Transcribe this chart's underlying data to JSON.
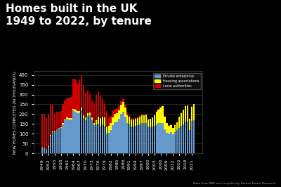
{
  "title_line1": "Homes built in the UK",
  "title_line2": "1949 to 2022, by tenure",
  "ylabel": "NEW HOMES COMPLETED (IN THOUSANDS)",
  "source": "Data from ONS and compiled by Denton House Research",
  "background_color": "#000000",
  "chart_bg": "#0a0a0a",
  "grid_color": "#444444",
  "text_color": "#ffffff",
  "bar_color_private": "#6699cc",
  "bar_color_housing": "#ffff00",
  "bar_color_local": "#cc0000",
  "legend_labels": [
    "Private enterprise",
    "Housing associations",
    "Local authorities"
  ],
  "years": [
    1949,
    1950,
    1951,
    1952,
    1953,
    1954,
    1955,
    1956,
    1957,
    1958,
    1959,
    1960,
    1961,
    1962,
    1963,
    1964,
    1965,
    1966,
    1967,
    1968,
    1969,
    1970,
    1971,
    1972,
    1973,
    1974,
    1975,
    1976,
    1977,
    1978,
    1979,
    1980,
    1981,
    1982,
    1983,
    1984,
    1985,
    1986,
    1987,
    1988,
    1989,
    1990,
    1991,
    1992,
    1993,
    1994,
    1995,
    1996,
    1997,
    1998,
    1999,
    2000,
    2001,
    2002,
    2003,
    2004,
    2005,
    2006,
    2007,
    2008,
    2009,
    2010,
    2011,
    2012,
    2013,
    2014,
    2015,
    2016,
    2017,
    2018,
    2019,
    2020,
    2021,
    2022
  ],
  "private": [
    26,
    27,
    21,
    34,
    90,
    108,
    112,
    121,
    126,
    128,
    148,
    168,
    176,
    174,
    174,
    218,
    213,
    204,
    207,
    222,
    181,
    170,
    192,
    196,
    170,
    143,
    149,
    152,
    141,
    149,
    141,
    100,
    103,
    118,
    145,
    160,
    162,
    178,
    203,
    213,
    187,
    153,
    150,
    138,
    138,
    142,
    143,
    148,
    153,
    153,
    156,
    136,
    135,
    137,
    139,
    148,
    153,
    154,
    156,
    122,
    105,
    101,
    107,
    96,
    109,
    118,
    131,
    140,
    147,
    161,
    161,
    118,
    164,
    170
  ],
  "housing_assoc": [
    2,
    2,
    2,
    2,
    2,
    3,
    3,
    3,
    4,
    4,
    5,
    6,
    6,
    6,
    6,
    8,
    9,
    10,
    10,
    11,
    12,
    12,
    12,
    12,
    12,
    13,
    20,
    35,
    40,
    38,
    42,
    38,
    37,
    38,
    38,
    40,
    43,
    40,
    45,
    48,
    45,
    40,
    38,
    35,
    34,
    36,
    38,
    40,
    42,
    40,
    42,
    38,
    40,
    45,
    55,
    65,
    70,
    80,
    85,
    66,
    48,
    40,
    38,
    32,
    35,
    41,
    55,
    65,
    75,
    80,
    82,
    60,
    75,
    80
  ],
  "local_auth": [
    175,
    170,
    157,
    163,
    157,
    136,
    88,
    87,
    81,
    83,
    97,
    96,
    98,
    104,
    107,
    155,
    157,
    143,
    162,
    165,
    157,
    132,
    117,
    96,
    86,
    100,
    128,
    124,
    109,
    94,
    72,
    77,
    45,
    34,
    31,
    27,
    26,
    25,
    18,
    18,
    16,
    15,
    11,
    8,
    7,
    7,
    6,
    5,
    5,
    4,
    4,
    3,
    3,
    3,
    3,
    3,
    2,
    2,
    2,
    2,
    2,
    2,
    2,
    2,
    3,
    3,
    2,
    2,
    2,
    2,
    2,
    2,
    2,
    2
  ],
  "ylim": [
    0,
    420
  ],
  "yticks": [
    0,
    50,
    100,
    150,
    200,
    250,
    300,
    350,
    400
  ]
}
